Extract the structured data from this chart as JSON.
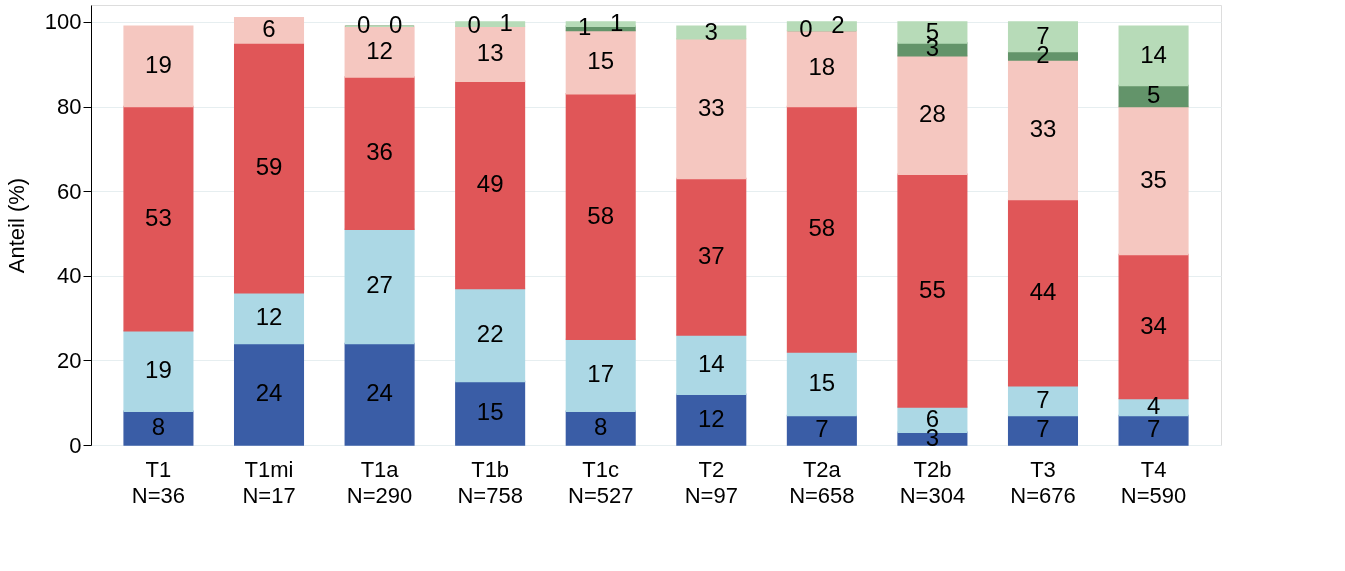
{
  "chart_data": {
    "type": "bar",
    "stacked": true,
    "ylabel": "Anteil (%)",
    "categories": [
      "T1\nN=36",
      "T1mi\nN=17",
      "T1a\nN=290",
      "T1b\nN=758",
      "T1c\nN=527",
      "T2\nN=97",
      "T2a\nN=658",
      "T2b\nN=304",
      "T3\nN=676",
      "T4\nN=590"
    ],
    "series": [
      {
        "color": "#3a5da6",
        "values": [
          8,
          24,
          24,
          15,
          8,
          12,
          7,
          3,
          7,
          7
        ]
      },
      {
        "color": "#acd8e5",
        "values": [
          19,
          12,
          27,
          22,
          17,
          14,
          15,
          6,
          7,
          4
        ]
      },
      {
        "color": "#e05658",
        "values": [
          53,
          59,
          36,
          49,
          58,
          37,
          58,
          55,
          44,
          34
        ]
      },
      {
        "color": "#f5c7c0",
        "values": [
          19,
          6,
          12,
          13,
          15,
          33,
          18,
          28,
          33,
          35
        ]
      },
      {
        "color": "#63946a",
        "values": [
          null,
          null,
          0,
          0,
          1,
          null,
          0,
          3,
          2,
          5
        ]
      },
      {
        "color": "#b7dbb8",
        "values": [
          null,
          null,
          0,
          1,
          1,
          3,
          2,
          5,
          7,
          14
        ]
      }
    ],
    "ylim": [
      0,
      104
    ],
    "yticks": [
      0,
      20,
      40,
      60,
      80,
      100
    ],
    "grid": "y",
    "legend": false,
    "data_labels": true
  }
}
